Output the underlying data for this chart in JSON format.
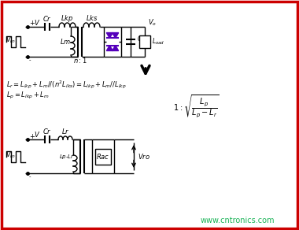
{
  "bg_color": "#ffffff",
  "border_color": "#cc0000",
  "border_width": 2.5,
  "watermark": "www.cntronics.com",
  "watermark_color": "#00aa44",
  "watermark_fontsize": 7,
  "diode_color": "#5500bb",
  "fig_width": 3.8,
  "fig_height": 2.92,
  "dpi": 100
}
